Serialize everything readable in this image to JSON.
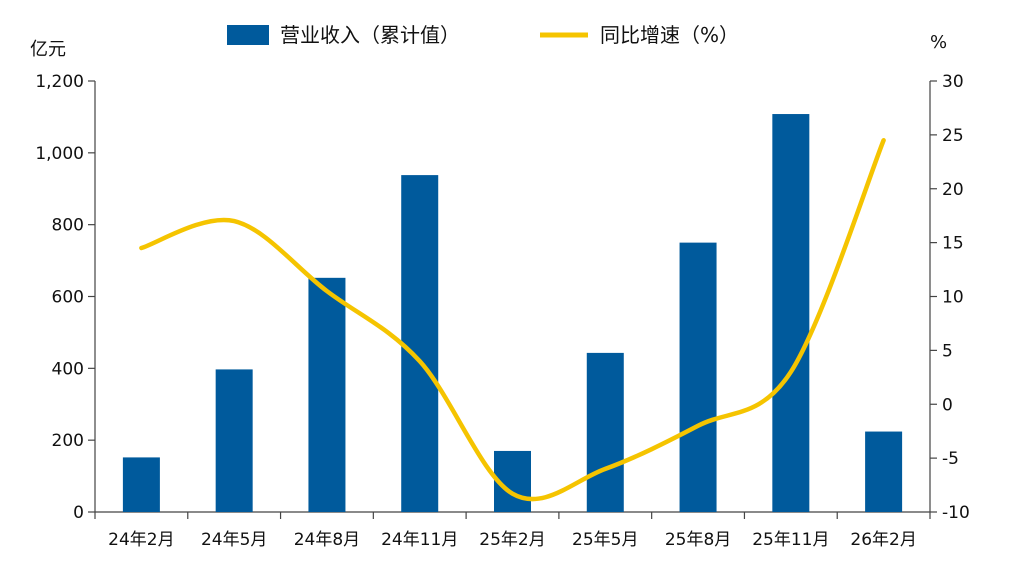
{
  "chart_data": {
    "type": "bar",
    "categories": [
      "24年2月",
      "24年5月",
      "24年8月",
      "24年11月",
      "25年2月",
      "25年5月",
      "25年8月",
      "25年11月",
      "26年2月"
    ],
    "series": [
      {
        "name": "营业收入（累计值）",
        "kind": "bar",
        "axis": "left",
        "color": "#005A9C",
        "values": [
          152,
          397,
          652,
          938,
          170,
          443,
          750,
          1108,
          224
        ]
      },
      {
        "name": "同比增速（%）",
        "kind": "line",
        "axis": "right",
        "color": "#F5C400",
        "values": [
          14.5,
          17.0,
          10.5,
          4.0,
          -8.3,
          -6.0,
          -2.0,
          3.0,
          24.5
        ]
      }
    ],
    "y_left": {
      "unit": "亿元",
      "ylim": [
        0,
        1200
      ],
      "ticks": [
        0,
        200,
        400,
        600,
        800,
        1000,
        1200
      ],
      "tick_labels": [
        "0",
        "200",
        "400",
        "600",
        "800",
        "1,000",
        "1,200"
      ]
    },
    "y_right": {
      "unit": "%",
      "ylim": [
        -10,
        30
      ],
      "ticks": [
        -10,
        -5,
        0,
        5,
        10,
        15,
        20,
        25,
        30
      ],
      "tick_labels": [
        "-10",
        "-5",
        "0",
        "5",
        "10",
        "15",
        "20",
        "25",
        "30"
      ]
    },
    "grid": false,
    "legend_position": "top-center"
  }
}
